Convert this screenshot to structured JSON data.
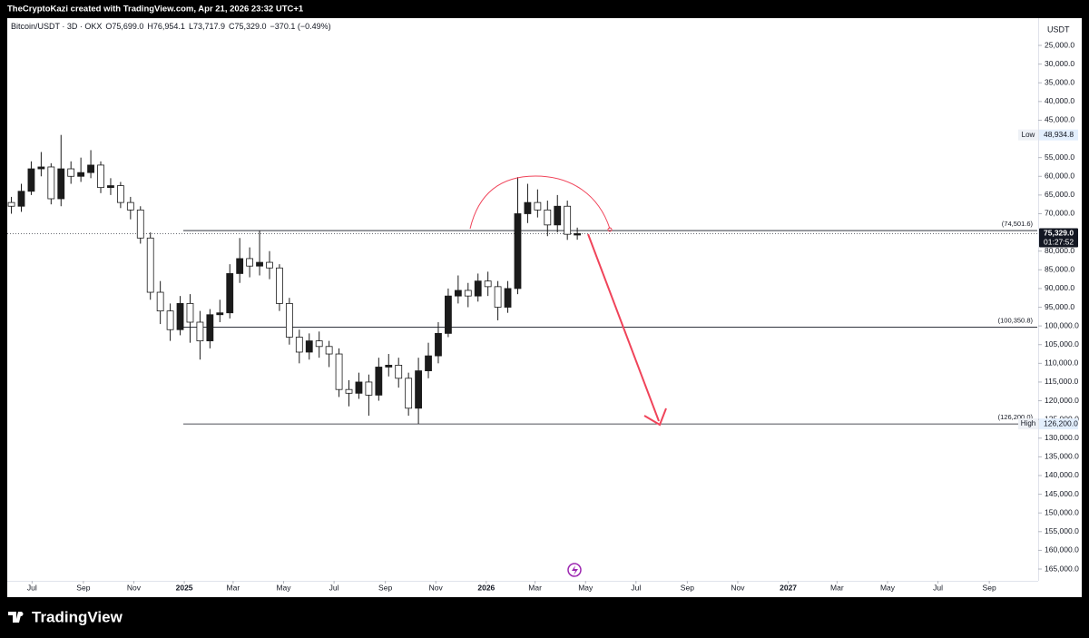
{
  "top_bar": "TheCryptoKazi created with TradingView.com, Apr 21, 2026 23:32 UTC+1",
  "footer_logo": "TradingView",
  "chart_data": {
    "type": "candlestick",
    "legend": {
      "symbol": "Bitcoin/USDT · 3D · OKX",
      "open": "O75,699.0",
      "high": "H76,954.1",
      "low": "L73,717.9",
      "close": "C75,329.0",
      "change": "−370.1 (−0.49%)"
    },
    "currency": "USDT",
    "up_color": "#ffffff",
    "down_color": "#1b1b1b",
    "wick_color": "#1b1b1b",
    "x": [
      "2024-06-06",
      "2024-06-18",
      "2024-06-30",
      "2024-07-12",
      "2024-07-24",
      "2024-08-05",
      "2024-08-17",
      "2024-08-29",
      "2024-09-10",
      "2024-09-22",
      "2024-10-04",
      "2024-10-16",
      "2024-10-28",
      "2024-11-09",
      "2024-11-21",
      "2024-12-03",
      "2024-12-15",
      "2024-12-27",
      "2025-01-08",
      "2025-01-20",
      "2025-02-01",
      "2025-02-13",
      "2025-02-25",
      "2025-03-09",
      "2025-03-21",
      "2025-04-02",
      "2025-04-14",
      "2025-04-26",
      "2025-05-08",
      "2025-05-20",
      "2025-06-01",
      "2025-06-13",
      "2025-06-25",
      "2025-07-07",
      "2025-07-19",
      "2025-07-31",
      "2025-08-12",
      "2025-08-24",
      "2025-09-05",
      "2025-09-17",
      "2025-09-29",
      "2025-10-11",
      "2025-10-23",
      "2025-11-04",
      "2025-11-16",
      "2025-11-28",
      "2025-12-10",
      "2025-12-22",
      "2026-01-03",
      "2026-01-15",
      "2026-01-27",
      "2026-02-08",
      "2026-02-20",
      "2026-03-04",
      "2026-03-16",
      "2026-03-28",
      "2026-04-09",
      "2026-04-21"
    ],
    "open": [
      67000,
      68000,
      64000,
      58000,
      57500,
      66000,
      58000,
      60000,
      59000,
      57000,
      63000,
      62500,
      67000,
      69000,
      76500,
      91000,
      96000,
      101000,
      94000,
      99000,
      104000,
      97000,
      96500,
      86000,
      82000,
      84000,
      83000,
      84500,
      94000,
      103000,
      107000,
      104000,
      105500,
      107500,
      117000,
      118000,
      115000,
      118500,
      111000,
      110500,
      114000,
      122000,
      112000,
      108000,
      102000,
      92000,
      90500,
      92000,
      88000,
      89500,
      95000,
      90000,
      70000,
      67000,
      69000,
      73000,
      68000,
      75699
    ],
    "high": [
      70000,
      69500,
      65000,
      60000,
      67500,
      68000,
      62000,
      61500,
      60500,
      64500,
      65000,
      68500,
      71500,
      78000,
      93000,
      99500,
      104000,
      102500,
      104500,
      109000,
      106000,
      99000,
      98000,
      88500,
      87000,
      86500,
      87500,
      96000,
      105000,
      110000,
      109000,
      108500,
      111000,
      119000,
      121500,
      119500,
      124000,
      120000,
      113500,
      116500,
      124000,
      126200,
      114000,
      110000,
      103000,
      94000,
      95000,
      93500,
      92000,
      98500,
      96500,
      91500,
      72500,
      71000,
      76000,
      75000,
      77000,
      76954.1
    ],
    "low": [
      65500,
      62000,
      56000,
      53500,
      56500,
      48934.8,
      56000,
      55000,
      53000,
      56000,
      60500,
      61500,
      65500,
      68000,
      75000,
      88000,
      94000,
      92000,
      91500,
      96000,
      95500,
      93000,
      83500,
      76500,
      79000,
      74501.6,
      80000,
      83500,
      92500,
      101000,
      102000,
      101500,
      104000,
      106000,
      114500,
      112500,
      113000,
      108500,
      107500,
      108500,
      112500,
      108500,
      104500,
      99000,
      90000,
      86500,
      88500,
      86000,
      85500,
      88000,
      88000,
      60200,
      62000,
      63500,
      66500,
      65000,
      66500,
      73717.9
    ],
    "close": [
      68000,
      64000,
      58000,
      57500,
      66000,
      58000,
      60000,
      59000,
      57000,
      63000,
      62500,
      67000,
      69000,
      76500,
      91000,
      96000,
      101000,
      94000,
      99000,
      104000,
      97000,
      96500,
      86000,
      82000,
      84000,
      83000,
      84500,
      94000,
      103000,
      107000,
      104000,
      105500,
      107500,
      117000,
      118000,
      115000,
      118500,
      111000,
      110500,
      114000,
      122000,
      112000,
      108000,
      102000,
      92000,
      90500,
      92000,
      88000,
      89500,
      95000,
      90000,
      70000,
      67000,
      69000,
      73000,
      68000,
      75500,
      75329
    ],
    "ylim": [
      18200,
      168150
    ],
    "y_inverted": true,
    "yticks": [
      {
        "value": 25000,
        "label": "25,000.0"
      },
      {
        "value": 30000,
        "label": "30,000.0"
      },
      {
        "value": 35000,
        "label": "35,000.0"
      },
      {
        "value": 40000,
        "label": "40,000.0"
      },
      {
        "value": 45000,
        "label": "45,000.0"
      },
      {
        "value": 55000,
        "label": "55,000.0"
      },
      {
        "value": 60000,
        "label": "60,000.0"
      },
      {
        "value": 65000,
        "label": "65,000.0"
      },
      {
        "value": 70000,
        "label": "70,000.0"
      },
      {
        "value": 80000,
        "label": "80,000.0"
      },
      {
        "value": 85000,
        "label": "85,000.0"
      },
      {
        "value": 90000,
        "label": "90,000.0"
      },
      {
        "value": 95000,
        "label": "95,000.0"
      },
      {
        "value": 100000,
        "label": "100,000.0"
      },
      {
        "value": 105000,
        "label": "105,000.0"
      },
      {
        "value": 110000,
        "label": "110,000.0"
      },
      {
        "value": 115000,
        "label": "115,000.0"
      },
      {
        "value": 120000,
        "label": "120,000.0"
      },
      {
        "value": 125000,
        "label": "125,000.0"
      },
      {
        "value": 130000,
        "label": "130,000.0"
      },
      {
        "value": 135000,
        "label": "135,000.0"
      },
      {
        "value": 140000,
        "label": "140,000.0"
      },
      {
        "value": 145000,
        "label": "145,000.0"
      },
      {
        "value": 150000,
        "label": "150,000.0"
      },
      {
        "value": 155000,
        "label": "155,000.0"
      },
      {
        "value": 160000,
        "label": "160,000.0"
      },
      {
        "value": 165000,
        "label": "165,000.0"
      }
    ],
    "xlim": [
      "2024-06-01",
      "2027-10-29"
    ],
    "xticks": [
      {
        "value": "2024-07-01",
        "label": "Jul"
      },
      {
        "value": "2024-09-01",
        "label": "Sep"
      },
      {
        "value": "2024-11-01",
        "label": "Nov"
      },
      {
        "value": "2025-01-01",
        "label": "2025"
      },
      {
        "value": "2025-03-01",
        "label": "Mar"
      },
      {
        "value": "2025-05-01",
        "label": "May"
      },
      {
        "value": "2025-07-01",
        "label": "Jul"
      },
      {
        "value": "2025-09-01",
        "label": "Sep"
      },
      {
        "value": "2025-11-01",
        "label": "Nov"
      },
      {
        "value": "2026-01-01",
        "label": "2026"
      },
      {
        "value": "2026-03-01",
        "label": "Mar"
      },
      {
        "value": "2026-05-01",
        "label": "May"
      },
      {
        "value": "2026-07-01",
        "label": "Jul"
      },
      {
        "value": "2026-09-01",
        "label": "Sep"
      },
      {
        "value": "2026-11-01",
        "label": "Nov"
      },
      {
        "value": "2027-01-01",
        "label": "2027"
      },
      {
        "value": "2027-03-01",
        "label": "Mar"
      },
      {
        "value": "2027-05-01",
        "label": "May"
      },
      {
        "value": "2027-07-01",
        "label": "Jul"
      },
      {
        "value": "2027-09-01",
        "label": "Sep"
      }
    ],
    "levels": [
      {
        "value": 74501.6,
        "label": "(74,501.6)"
      },
      {
        "value": 100350.8,
        "label": "(100,350.8)"
      },
      {
        "value": 126200,
        "label": "(126,200.0)"
      }
    ],
    "price_label": {
      "value": 75329,
      "label": "75,329.0",
      "countdown": "01:27:52"
    },
    "low_marker": {
      "value": 48934.8,
      "label": "48,934.8",
      "tag": "Low"
    },
    "high_marker": {
      "value": 126200,
      "label": "126,200.0",
      "tag": "High"
    }
  }
}
